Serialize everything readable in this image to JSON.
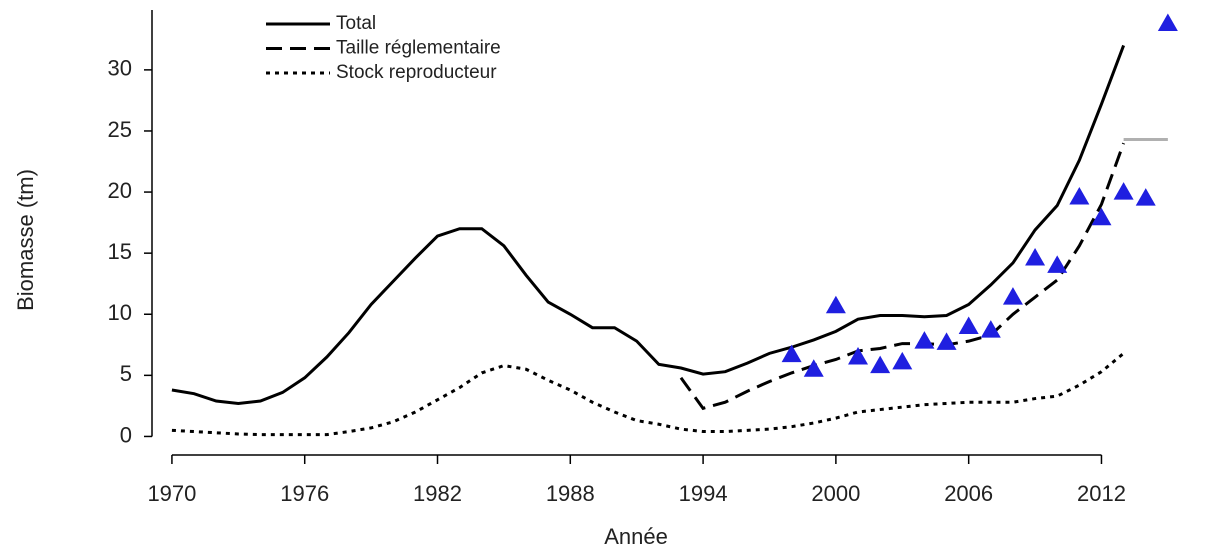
{
  "chart_data": {
    "type": "line",
    "x_label": "Année",
    "y_label": "Biomasse (tm)",
    "x": [
      1970,
      1971,
      1972,
      1973,
      1974,
      1975,
      1976,
      1977,
      1978,
      1979,
      1980,
      1981,
      1982,
      1983,
      1984,
      1985,
      1986,
      1987,
      1988,
      1989,
      1990,
      1991,
      1992,
      1993,
      1994,
      1995,
      1996,
      1997,
      1998,
      1999,
      2000,
      2001,
      2002,
      2003,
      2004,
      2005,
      2006,
      2007,
      2008,
      2009,
      2010,
      2011,
      2012,
      2013
    ],
    "series": [
      {
        "name": "Total",
        "color": "#000000",
        "dash": "solid",
        "values": [
          3.8,
          3.5,
          2.9,
          2.7,
          2.9,
          3.6,
          4.8,
          6.5,
          8.5,
          10.8,
          12.7,
          14.6,
          16.4,
          17.0,
          17.0,
          15.6,
          13.2,
          11.0,
          10.0,
          8.9,
          8.9,
          7.8,
          5.9,
          5.6,
          5.1,
          5.3,
          6.0,
          6.8,
          7.3,
          7.9,
          8.6,
          9.6,
          9.9,
          9.9,
          9.8,
          9.9,
          10.8,
          12.4,
          14.2,
          16.9,
          18.9,
          22.6,
          27.2,
          32.0
        ]
      },
      {
        "name": "Taille réglementaire",
        "color": "#000000",
        "dash": "dashed",
        "values": [
          null,
          null,
          null,
          null,
          null,
          null,
          null,
          null,
          null,
          null,
          null,
          null,
          null,
          null,
          null,
          null,
          null,
          null,
          null,
          null,
          null,
          null,
          null,
          4.8,
          2.3,
          2.8,
          3.7,
          4.5,
          5.2,
          5.8,
          6.3,
          7.0,
          7.2,
          7.6,
          7.6,
          7.5,
          7.8,
          8.3,
          10.0,
          11.4,
          12.8,
          15.6,
          19.0,
          24.0
        ]
      },
      {
        "name": "Stock reproducteur",
        "color": "#000000",
        "dash": "dotted",
        "values": [
          0.5,
          0.4,
          0.3,
          0.2,
          0.15,
          0.15,
          0.15,
          0.15,
          0.4,
          0.7,
          1.2,
          2.0,
          3.0,
          4.0,
          5.2,
          5.8,
          5.5,
          4.6,
          3.8,
          2.8,
          2.0,
          1.3,
          1.0,
          0.6,
          0.4,
          0.4,
          0.5,
          0.6,
          0.8,
          1.1,
          1.5,
          2.0,
          2.2,
          2.4,
          2.6,
          2.7,
          2.8,
          2.8,
          2.8,
          3.1,
          3.3,
          4.2,
          5.3,
          6.8
        ]
      }
    ],
    "points": {
      "color": "#1f1fe0",
      "x": [
        1998,
        1999,
        2000,
        2001,
        2002,
        2003,
        2004,
        2005,
        2006,
        2007,
        2008,
        2009,
        2010,
        2011,
        2012,
        2013,
        2014,
        2015
      ],
      "values": [
        6.7,
        5.5,
        10.7,
        6.5,
        5.8,
        6.1,
        7.8,
        7.7,
        9.0,
        8.7,
        11.4,
        14.6,
        14.0,
        19.6,
        17.9,
        20.0,
        19.5,
        33.8
      ]
    },
    "reference_line": {
      "value": 24.3,
      "x": [
        2013,
        2015
      ],
      "color": "#b0b0b0"
    },
    "xlim": [
      1969.1,
      2016
    ],
    "ylim": [
      -0.7,
      34.9
    ],
    "xticks": [
      1970,
      1976,
      1982,
      1988,
      1994,
      2000,
      2006,
      2012
    ],
    "yticks": [
      0,
      5,
      10,
      15,
      20,
      25,
      30
    ]
  }
}
